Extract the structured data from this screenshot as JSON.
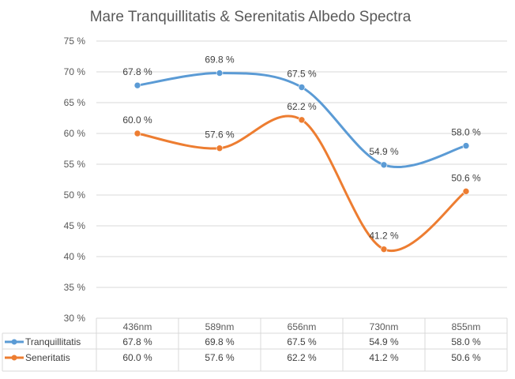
{
  "chart_data": {
    "type": "line",
    "title": "Mare Tranquillitatis & Serenitatis Albedo Spectra",
    "categories": [
      "436nm",
      "589nm",
      "656nm",
      "730nm",
      "855nm"
    ],
    "series": [
      {
        "name": "Tranquillitatis",
        "values": [
          67.8,
          69.8,
          67.5,
          54.9,
          58.0
        ],
        "color": "#5B9BD5",
        "labels": [
          "67.8 %",
          "69.8 %",
          "67.5 %",
          "54.9 %",
          "58.0 %"
        ]
      },
      {
        "name": "Seneritatis",
        "values": [
          60.0,
          57.6,
          62.2,
          41.2,
          50.6
        ],
        "color": "#ED7D31",
        "labels": [
          "60.0 %",
          "57.6 %",
          "62.2 %",
          "41.2 %",
          "50.6 %"
        ]
      }
    ],
    "ylim": [
      30,
      75
    ],
    "yticks": [
      30,
      35,
      40,
      45,
      50,
      55,
      60,
      65,
      70,
      75
    ],
    "ytick_labels": [
      "30 %",
      "35 %",
      "40 %",
      "45 %",
      "50 %",
      "55 %",
      "60 %",
      "65 %",
      "70 %",
      "75 %"
    ],
    "gridlines": true,
    "data_table": true,
    "line_style": "smoothed"
  }
}
